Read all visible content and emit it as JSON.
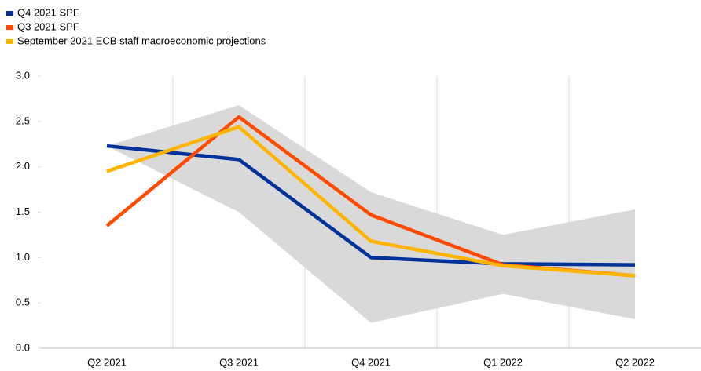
{
  "chart_data": {
    "type": "line",
    "categories": [
      "Q2 2021",
      "Q3 2021",
      "Q4 2021",
      "Q1 2022",
      "Q2 2022"
    ],
    "series": [
      {
        "name": "Q4 2021 SPF",
        "color": "#003299",
        "values": [
          2.23,
          2.08,
          1.0,
          0.93,
          0.92
        ]
      },
      {
        "name": "Q3 2021 SPF",
        "color": "#ff4b00",
        "values": [
          1.35,
          2.55,
          1.47,
          0.92,
          0.8
        ]
      },
      {
        "name": "September 2021 ECB staff macroeconomic projections",
        "color": "#ffb400",
        "values": [
          1.95,
          2.44,
          1.18,
          0.91,
          0.8
        ]
      }
    ],
    "band": {
      "color": "#d9d9d9",
      "upper": [
        2.23,
        2.68,
        1.72,
        1.25,
        1.53
      ],
      "lower": [
        2.23,
        1.5,
        0.28,
        0.6,
        0.32
      ]
    },
    "ylim": [
      0,
      3
    ],
    "yticks": [
      {
        "value": 0,
        "label": "0.0"
      },
      {
        "value": 0.5,
        "label": "0.5"
      },
      {
        "value": 1,
        "label": "1.0"
      },
      {
        "value": 1.5,
        "label": "1.5"
      },
      {
        "value": 2,
        "label": "2.0"
      },
      {
        "value": 2.5,
        "label": "2.5"
      },
      {
        "value": 3,
        "label": "3.0"
      }
    ],
    "legend": "top-left",
    "grid": true
  }
}
